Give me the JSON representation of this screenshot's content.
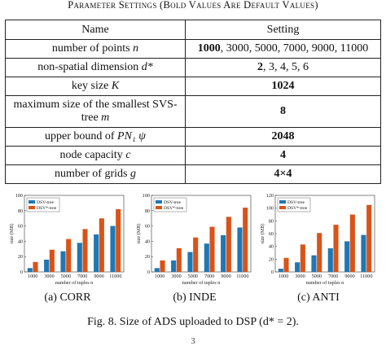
{
  "table_caption": "Parameter Settings (Bold Values Are Default Values)",
  "table": {
    "header": [
      "Name",
      "Setting"
    ],
    "rows": [
      {
        "name_text": "number of points",
        "name_symbol": "n",
        "setting_bold": "1000",
        "setting_rest": ", 3000, 5000, 7000, 9000, 11000"
      },
      {
        "name_text": "non-spatial dimension",
        "name_symbol": "d*",
        "setting_bold": "2",
        "setting_rest": ", 3, 4, 5, 6"
      },
      {
        "name_text": "key size",
        "name_symbol": "K",
        "setting_bold": "1024",
        "setting_rest": ""
      },
      {
        "name_text": "maximum size of the smallest SVS-tree",
        "name_symbol": "m",
        "setting_bold": "8",
        "setting_rest": ""
      },
      {
        "name_text": "upper bound of",
        "name_symbol": "PN₁ ψ",
        "setting_bold": "2048",
        "setting_rest": ""
      },
      {
        "name_text": "node capacity",
        "name_symbol": "c",
        "setting_bold": "4",
        "setting_rest": ""
      },
      {
        "name_text": "number of grids",
        "name_symbol": "g",
        "setting_bold": "4×4",
        "setting_rest": ""
      }
    ]
  },
  "colors": {
    "dsv": "#1f77b4",
    "dsv_star": "#d95319"
  },
  "chart_data": [
    {
      "type": "bar",
      "subcaption": "(a) CORR",
      "xlabel": "number of tuples n",
      "ylabel": "size (MB)",
      "categories": [
        "1000",
        "3000",
        "5000",
        "7000",
        "9000",
        "11000"
      ],
      "ylim": [
        0,
        100
      ],
      "yticks": [
        "0",
        "20",
        "40",
        "60",
        "80",
        "100"
      ],
      "legend_position": "top-left",
      "series": [
        {
          "name": "DSV-tree",
          "values": [
            5,
            16,
            27,
            38,
            49,
            60
          ]
        },
        {
          "name": "DSV*-tree",
          "values": [
            13,
            29,
            43,
            56,
            70,
            82
          ]
        }
      ]
    },
    {
      "type": "bar",
      "subcaption": "(b) INDE",
      "xlabel": "number of tuples n",
      "ylabel": "size (MB)",
      "categories": [
        "1000",
        "3000",
        "5000",
        "7000",
        "9000",
        "11000"
      ],
      "ylim": [
        0,
        100
      ],
      "yticks": [
        "0",
        "20",
        "40",
        "60",
        "80",
        "100"
      ],
      "legend_position": "top-left",
      "series": [
        {
          "name": "DSV-tree",
          "values": [
            5,
            15,
            26,
            37,
            48,
            58
          ]
        },
        {
          "name": "DSV*-tree",
          "values": [
            15,
            31,
            45,
            59,
            72,
            84
          ]
        }
      ]
    },
    {
      "type": "bar",
      "subcaption": "(c) ANTI",
      "xlabel": "number of tuples n",
      "ylabel": "size (MB)",
      "categories": [
        "1000",
        "3000",
        "5000",
        "7000",
        "9000",
        "11000"
      ],
      "ylim": [
        0,
        120
      ],
      "yticks": [
        "0",
        "20",
        "40",
        "60",
        "80",
        "100",
        "120"
      ],
      "legend_position": "top-left",
      "series": [
        {
          "name": "DSV-tree",
          "values": [
            5,
            15,
            26,
            37,
            48,
            58
          ]
        },
        {
          "name": "DSV*-tree",
          "values": [
            22,
            43,
            61,
            74,
            90,
            105
          ]
        }
      ]
    }
  ],
  "figure_caption": "Fig. 8.    Size of ADS uploaded to DSP (d* = 2).",
  "page_mark": "3"
}
